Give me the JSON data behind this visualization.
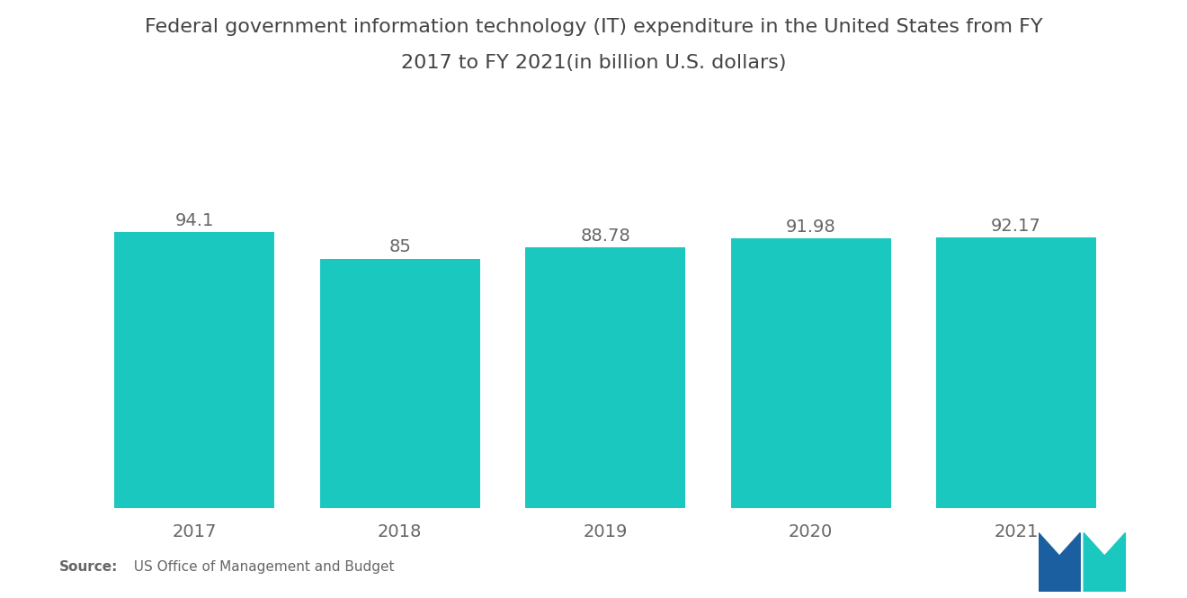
{
  "title_line1": "Federal government information technology (IT) expenditure in the United States from FY",
  "title_line2": "2017 to FY 2021(in billion U.S. dollars)",
  "categories": [
    "2017",
    "2018",
    "2019",
    "2020",
    "2021"
  ],
  "values": [
    94.1,
    85,
    88.78,
    91.98,
    92.17
  ],
  "value_labels": [
    "94.1",
    "85",
    "88.78",
    "91.98",
    "92.17"
  ],
  "bar_color": "#1BC8C0",
  "background_color": "#ffffff",
  "title_fontsize": 16,
  "label_fontsize": 14,
  "tick_fontsize": 14,
  "source_bold": "Source:",
  "source_rest": "  US Office of Management and Budget",
  "ylim": [
    0,
    112
  ],
  "bar_width": 0.78,
  "text_color": "#666666",
  "title_color": "#444444"
}
